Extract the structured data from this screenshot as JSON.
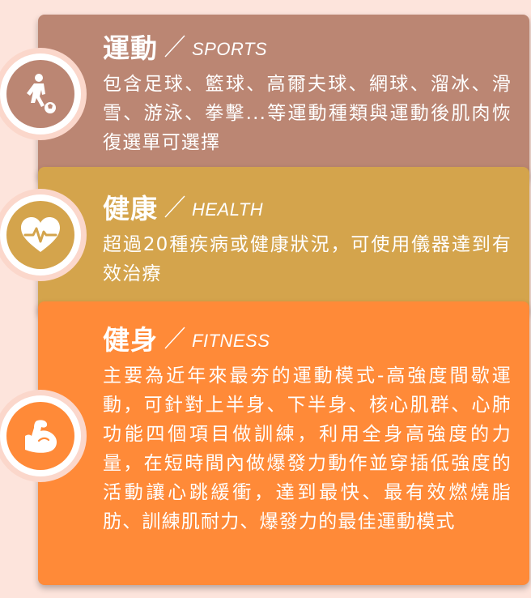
{
  "sections": [
    {
      "title": "運動",
      "subtitle": "SPORTS",
      "description": "包含足球、籃球、高爾夫球、網球、溜冰、滑雪、游泳、拳擊...等運動種類與運動後肌肉恢復選單可選擇",
      "icon": "soccer-player-icon",
      "color": "#bb8673"
    },
    {
      "title": "健康",
      "subtitle": "HEALTH",
      "description": "超過20種疾病或健康狀況，可使用儀器達到有效治療",
      "icon": "heartbeat-icon",
      "color": "#d4a44c"
    },
    {
      "title": "健身",
      "subtitle": "FITNESS",
      "description": "主要為近年來最夯的運動模式-高強度間歇運動，可針對上半身、下半身、核心肌群、心肺功能四個項目做訓練，利用全身高強度的力量，在短時間內做爆發力動作並穿插低強度的活動讓心跳緩衝，達到最快、最有效燃燒脂肪、訓練肌耐力、爆發力的最佳運動模式",
      "icon": "flexed-arm-icon",
      "color": "#ff8a38"
    }
  ],
  "background_color": "#fde4dc"
}
